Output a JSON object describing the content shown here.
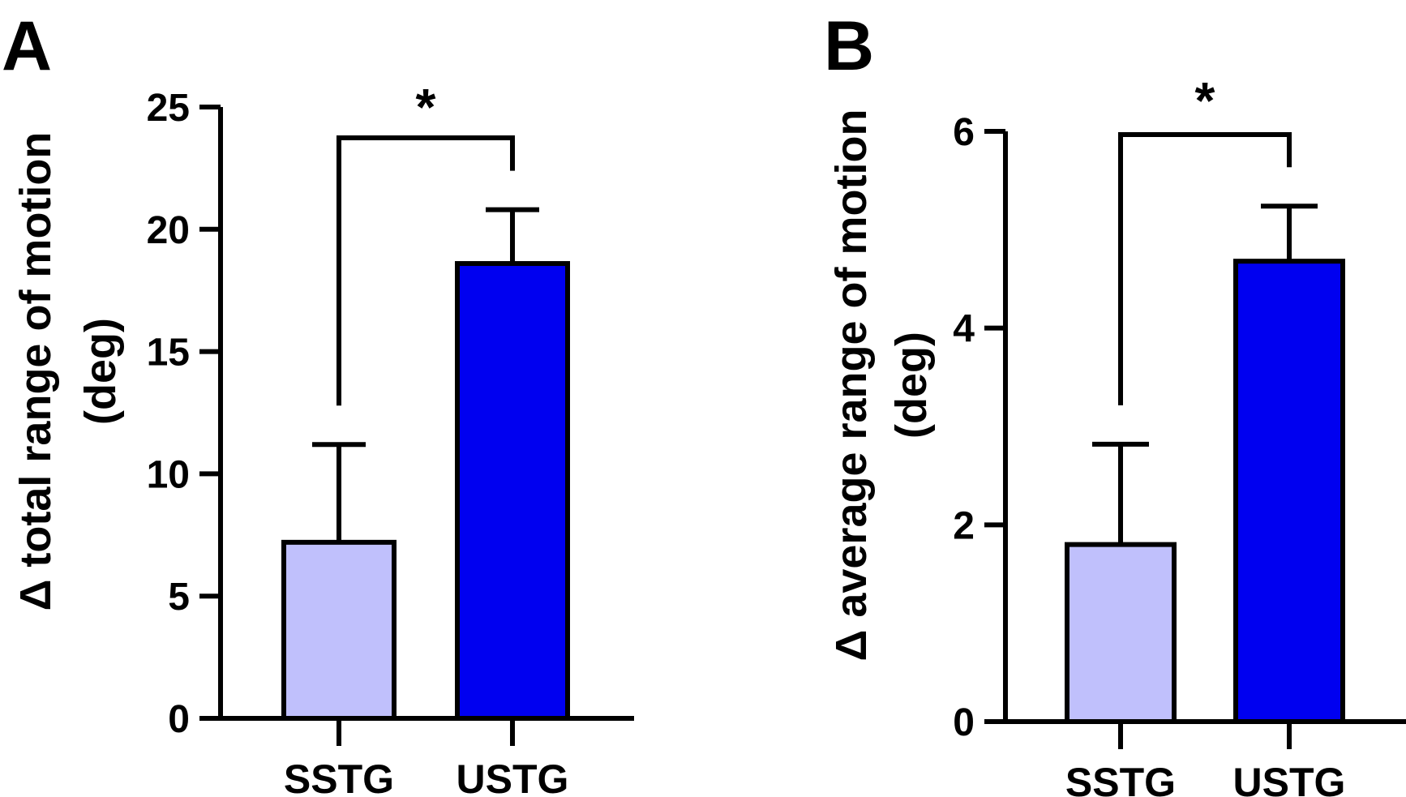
{
  "chart_data": [
    {
      "type": "bar",
      "panel_label": "A",
      "categories": [
        "SSTG",
        "USTG"
      ],
      "values": [
        7.2,
        18.6
      ],
      "errors": [
        4.0,
        2.2
      ],
      "colors": [
        "#c0c0fc",
        "#0000f0"
      ],
      "ylabel_line1": "Δ total range of motion",
      "ylabel_line2": "(deg)",
      "ylim": [
        0,
        25
      ],
      "yticks": [
        0,
        5,
        10,
        15,
        20,
        25
      ],
      "significance": "*"
    },
    {
      "type": "bar",
      "panel_label": "B",
      "categories": [
        "SSTG",
        "USTG"
      ],
      "values": [
        1.8,
        4.68
      ],
      "errors": [
        1.02,
        0.56
      ],
      "colors": [
        "#c0c0fc",
        "#0000f0"
      ],
      "ylabel_line1": "Δ average range of motion",
      "ylabel_line2": "(deg)",
      "ylim": [
        0,
        6
      ],
      "yticks": [
        0,
        2,
        4,
        6
      ],
      "significance": "*"
    }
  ]
}
